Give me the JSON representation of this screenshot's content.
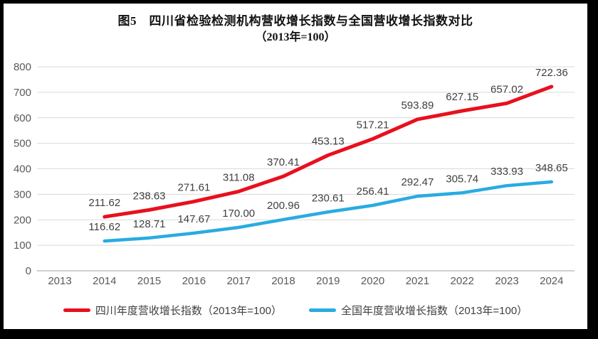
{
  "chart_data": {
    "type": "line",
    "title": "图5　四川省检验检测机构营收增长指数与全国营收增长指数对比",
    "subtitle": "（2013年=100）",
    "categories": [
      "2013",
      "2014",
      "2015",
      "2016",
      "2017",
      "2018",
      "2019",
      "2020",
      "2021",
      "2022",
      "2023",
      "2024"
    ],
    "series": [
      {
        "name": "四川年度营收增长指数（2013年=100）",
        "color": "#e8101e",
        "values": [
          null,
          211.62,
          238.63,
          271.61,
          311.08,
          370.41,
          453.13,
          517.21,
          593.89,
          627.15,
          657.02,
          722.36
        ]
      },
      {
        "name": "全国年度营收增长指数（2013年=100）",
        "color": "#29abe2",
        "values": [
          null,
          116.62,
          128.71,
          147.67,
          170.0,
          200.96,
          230.61,
          256.41,
          292.47,
          305.74,
          333.93,
          348.65
        ]
      }
    ],
    "ylim": [
      0,
      800
    ],
    "ytick_step": 100,
    "yticks": [
      0,
      100,
      200,
      300,
      400,
      500,
      600,
      700,
      800
    ],
    "grid": true,
    "data_labels": true,
    "label_decimals": 2,
    "legend_position": "bottom",
    "colors": {
      "gridline": "#d9d9d9",
      "axis_line": "#bfbfbf",
      "axis_text": "#595959",
      "data_label_text": "#3f3f3f",
      "title_text": "#111111"
    }
  }
}
